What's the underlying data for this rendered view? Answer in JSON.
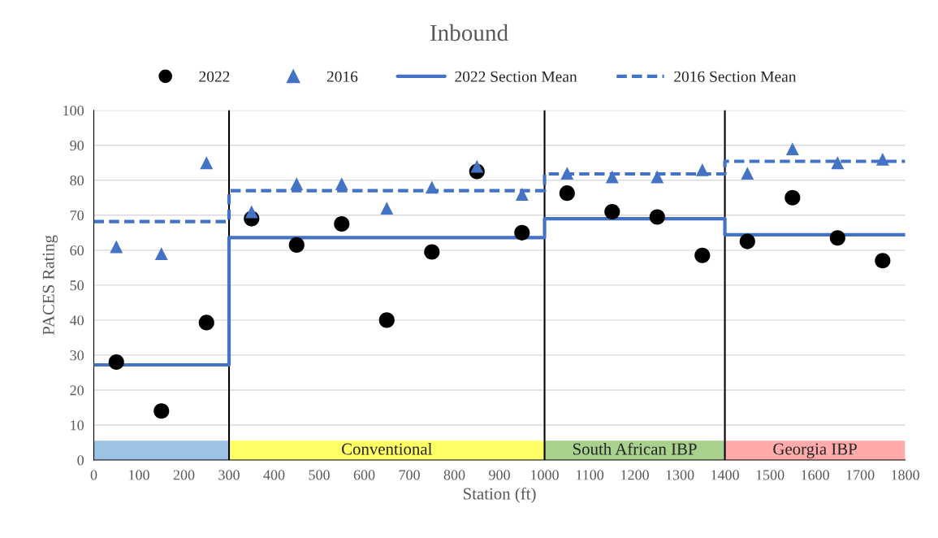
{
  "chart_data": {
    "type": "scatter",
    "title": "Inbound",
    "xlabel": "Station (ft)",
    "ylabel": "PACES Rating",
    "x": [
      50,
      150,
      250,
      350,
      450,
      550,
      650,
      750,
      850,
      950,
      1050,
      1150,
      1250,
      1350,
      1450,
      1550,
      1650,
      1750
    ],
    "series": [
      {
        "name": "2022",
        "marker": "circle",
        "color": "#000000",
        "values": [
          28,
          14,
          39.3,
          69,
          61.5,
          67.5,
          40,
          59.5,
          82.5,
          65,
          76.3,
          71,
          69.5,
          58.5,
          62.5,
          75,
          63.5,
          57
        ]
      },
      {
        "name": "2016",
        "marker": "triangle",
        "color": "#4472c4",
        "values": [
          61,
          59,
          85,
          71,
          79,
          79,
          72,
          78,
          84,
          76,
          82,
          81,
          81,
          83,
          82,
          89,
          85,
          86
        ]
      },
      {
        "name": "2022 Section Mean",
        "type": "line",
        "marker": "none",
        "line_style": "solid",
        "color": "#4472c4",
        "x": [
          0,
          300,
          300,
          1000,
          1000,
          1400,
          1400,
          1800
        ],
        "values": [
          27.2,
          27.2,
          63.6,
          63.6,
          69,
          69,
          64.4,
          64.4
        ]
      },
      {
        "name": "2016 Section Mean",
        "type": "line",
        "marker": "none",
        "line_style": "dashed",
        "color": "#4472c4",
        "x": [
          0,
          300,
          300,
          1000,
          1000,
          1400,
          1400,
          1800
        ],
        "values": [
          68.2,
          68.2,
          77,
          77,
          81.8,
          81.8,
          85.4,
          85.4
        ]
      }
    ],
    "xlim": [
      0,
      1800
    ],
    "xticks": [
      0,
      100,
      200,
      300,
      400,
      500,
      600,
      700,
      800,
      900,
      1000,
      1100,
      1200,
      1300,
      1400,
      1500,
      1600,
      1700,
      1800
    ],
    "ylim": [
      0,
      100
    ],
    "yticks": [
      0,
      10,
      20,
      30,
      40,
      50,
      60,
      70,
      80,
      90,
      100
    ],
    "grid": "y",
    "legend": "top",
    "ref_lines": [
      {
        "axis": "x",
        "value": 300,
        "color": "#000000"
      },
      {
        "axis": "x",
        "value": 1000,
        "color": "#000000"
      },
      {
        "axis": "x",
        "value": 1400,
        "color": "#000000"
      }
    ],
    "bands": [
      {
        "axis": "x",
        "from": 0,
        "to": 300,
        "color": "#9dc3e6"
      },
      {
        "axis": "x",
        "from": 300,
        "to": 1000,
        "label": "Conventional",
        "color": "#ffff66"
      },
      {
        "axis": "x",
        "from": 1000,
        "to": 1400,
        "label": "South African IBP",
        "color": "#a9d18e"
      },
      {
        "axis": "x",
        "from": 1400,
        "to": 1800,
        "label": "Georgia IBP",
        "color": "#ffabab"
      }
    ]
  }
}
